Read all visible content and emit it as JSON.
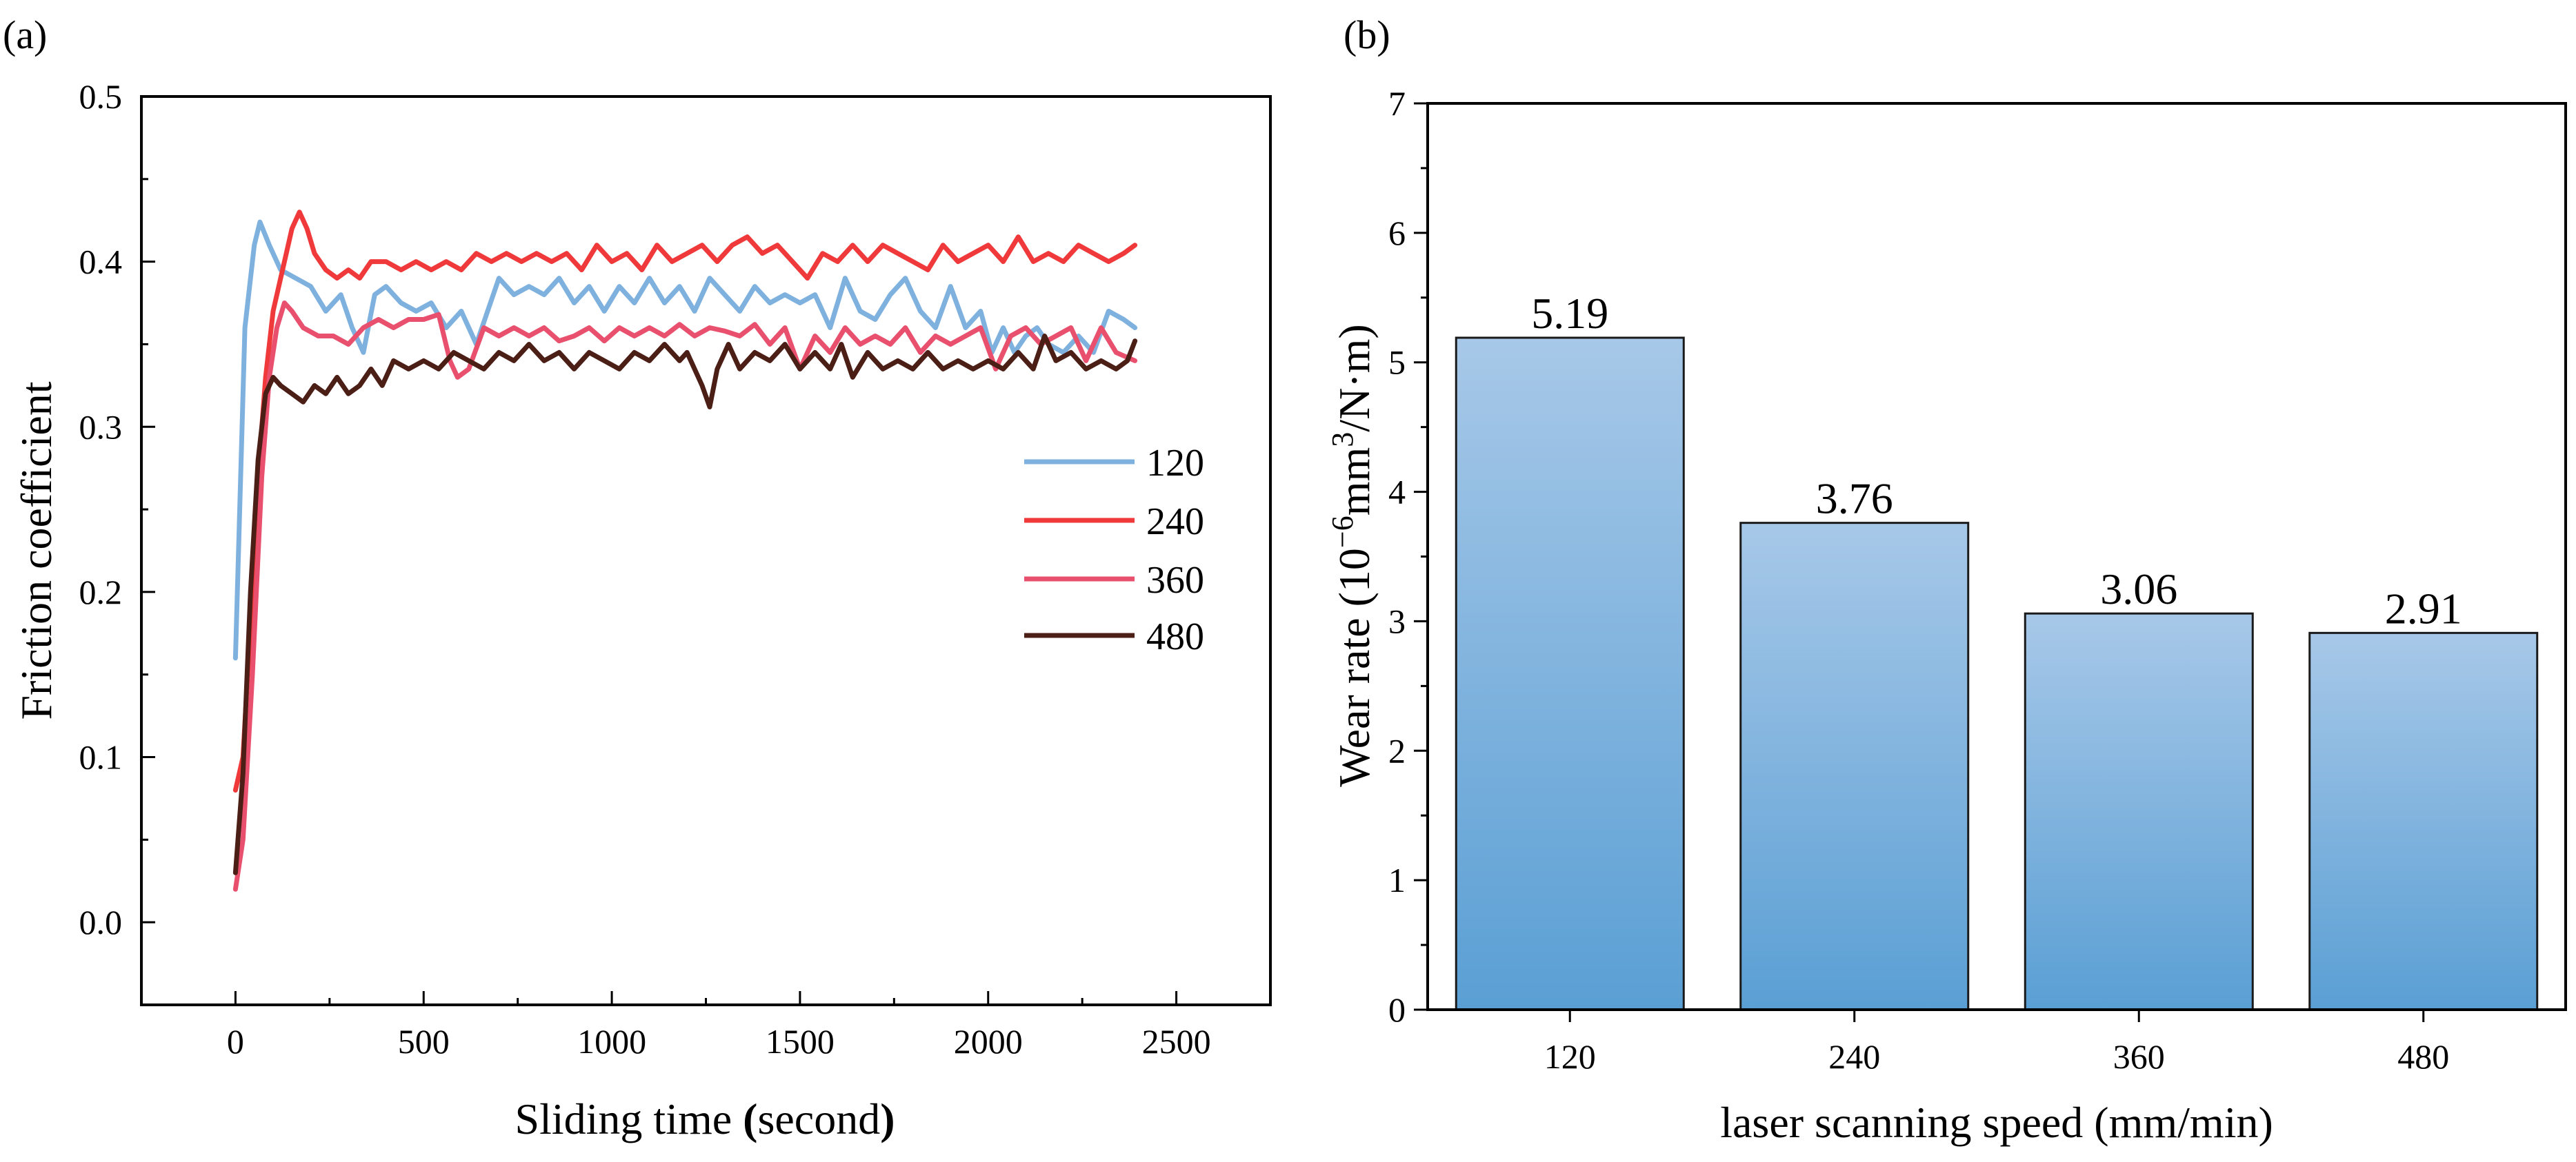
{
  "chart_data": [
    {
      "panel_label": "(a)",
      "type": "line",
      "title": "",
      "xlabel_parts": [
        "Sliding time ",
        "(",
        "second",
        ")"
      ],
      "ylabel": "Friction coefficient",
      "xlim": [
        -250,
        2750
      ],
      "ylim": [
        -0.05,
        0.5
      ],
      "x_ticks": [
        0,
        500,
        1000,
        1500,
        2000,
        2500
      ],
      "x_tick_labels": [
        "0",
        "500",
        "1000",
        "1500",
        "2000",
        "2500"
      ],
      "y_ticks": [
        0.0,
        0.1,
        0.2,
        0.3,
        0.4,
        0.5
      ],
      "y_tick_labels": [
        "0.0",
        "0.1",
        "0.2",
        "0.3",
        "0.4",
        "0.5"
      ],
      "grid": false,
      "legend_position": "right-middle",
      "series": [
        {
          "name": "120",
          "color": "#7fb1df",
          "x": [
            0,
            25,
            50,
            65,
            90,
            120,
            160,
            200,
            240,
            280,
            310,
            340,
            370,
            400,
            440,
            480,
            520,
            560,
            600,
            640,
            670,
            700,
            740,
            780,
            820,
            860,
            900,
            940,
            980,
            1020,
            1060,
            1100,
            1140,
            1180,
            1220,
            1260,
            1300,
            1340,
            1380,
            1420,
            1460,
            1500,
            1540,
            1580,
            1620,
            1660,
            1700,
            1740,
            1780,
            1820,
            1860,
            1900,
            1940,
            1980,
            2010,
            2040,
            2070,
            2100,
            2130,
            2160,
            2200,
            2240,
            2280,
            2320,
            2360,
            2390
          ],
          "y": [
            0.16,
            0.36,
            0.41,
            0.424,
            0.41,
            0.395,
            0.39,
            0.385,
            0.37,
            0.38,
            0.36,
            0.345,
            0.38,
            0.385,
            0.375,
            0.37,
            0.375,
            0.36,
            0.37,
            0.35,
            0.37,
            0.39,
            0.38,
            0.385,
            0.38,
            0.39,
            0.375,
            0.385,
            0.37,
            0.385,
            0.375,
            0.39,
            0.375,
            0.385,
            0.37,
            0.39,
            0.38,
            0.37,
            0.385,
            0.375,
            0.38,
            0.375,
            0.38,
            0.36,
            0.39,
            0.37,
            0.365,
            0.38,
            0.39,
            0.37,
            0.36,
            0.385,
            0.36,
            0.37,
            0.345,
            0.36,
            0.345,
            0.355,
            0.36,
            0.35,
            0.345,
            0.355,
            0.345,
            0.37,
            0.365,
            0.36
          ]
        },
        {
          "name": "240",
          "color": "#f0393a",
          "x": [
            0,
            20,
            40,
            60,
            80,
            100,
            130,
            150,
            170,
            190,
            210,
            240,
            270,
            300,
            330,
            360,
            400,
            440,
            480,
            520,
            560,
            600,
            640,
            680,
            720,
            760,
            800,
            840,
            880,
            920,
            960,
            1000,
            1040,
            1080,
            1120,
            1160,
            1200,
            1240,
            1280,
            1320,
            1360,
            1400,
            1440,
            1480,
            1520,
            1560,
            1600,
            1640,
            1680,
            1720,
            1760,
            1800,
            1840,
            1880,
            1920,
            1960,
            2000,
            2040,
            2080,
            2120,
            2160,
            2200,
            2240,
            2280,
            2320,
            2360,
            2390
          ],
          "y": [
            0.08,
            0.1,
            0.18,
            0.27,
            0.33,
            0.37,
            0.4,
            0.42,
            0.43,
            0.42,
            0.405,
            0.395,
            0.39,
            0.395,
            0.39,
            0.4,
            0.4,
            0.395,
            0.4,
            0.395,
            0.4,
            0.395,
            0.405,
            0.4,
            0.405,
            0.4,
            0.405,
            0.4,
            0.405,
            0.395,
            0.41,
            0.4,
            0.405,
            0.395,
            0.41,
            0.4,
            0.405,
            0.41,
            0.4,
            0.41,
            0.415,
            0.405,
            0.41,
            0.4,
            0.39,
            0.405,
            0.4,
            0.41,
            0.4,
            0.41,
            0.405,
            0.4,
            0.395,
            0.41,
            0.4,
            0.405,
            0.41,
            0.4,
            0.415,
            0.4,
            0.405,
            0.4,
            0.41,
            0.405,
            0.4,
            0.405,
            0.41
          ]
        },
        {
          "name": "360",
          "color": "#e8506e",
          "x": [
            0,
            20,
            45,
            70,
            90,
            110,
            130,
            150,
            180,
            220,
            260,
            300,
            340,
            380,
            420,
            460,
            500,
            540,
            570,
            590,
            620,
            660,
            700,
            740,
            780,
            820,
            860,
            900,
            940,
            980,
            1020,
            1060,
            1100,
            1140,
            1180,
            1220,
            1260,
            1300,
            1340,
            1380,
            1420,
            1460,
            1500,
            1540,
            1580,
            1620,
            1660,
            1700,
            1740,
            1780,
            1820,
            1860,
            1900,
            1940,
            1980,
            2020,
            2060,
            2100,
            2140,
            2180,
            2220,
            2260,
            2300,
            2340,
            2390
          ],
          "y": [
            0.02,
            0.05,
            0.15,
            0.27,
            0.33,
            0.36,
            0.375,
            0.37,
            0.36,
            0.355,
            0.355,
            0.35,
            0.36,
            0.365,
            0.36,
            0.365,
            0.365,
            0.368,
            0.34,
            0.33,
            0.335,
            0.36,
            0.355,
            0.36,
            0.355,
            0.36,
            0.352,
            0.355,
            0.36,
            0.352,
            0.36,
            0.355,
            0.36,
            0.355,
            0.362,
            0.355,
            0.36,
            0.358,
            0.355,
            0.362,
            0.35,
            0.36,
            0.335,
            0.355,
            0.345,
            0.36,
            0.35,
            0.355,
            0.35,
            0.36,
            0.345,
            0.355,
            0.35,
            0.355,
            0.36,
            0.335,
            0.355,
            0.36,
            0.35,
            0.355,
            0.36,
            0.34,
            0.36,
            0.345,
            0.34
          ]
        },
        {
          "name": "480",
          "color": "#4b1e16",
          "x": [
            0,
            20,
            40,
            60,
            80,
            100,
            120,
            150,
            180,
            210,
            240,
            270,
            300,
            330,
            360,
            390,
            420,
            460,
            500,
            540,
            580,
            620,
            660,
            700,
            740,
            780,
            820,
            860,
            900,
            940,
            980,
            1020,
            1060,
            1100,
            1140,
            1180,
            1200,
            1220,
            1240,
            1260,
            1280,
            1310,
            1340,
            1380,
            1420,
            1460,
            1500,
            1540,
            1580,
            1610,
            1640,
            1680,
            1720,
            1760,
            1800,
            1840,
            1880,
            1920,
            1960,
            2000,
            2040,
            2080,
            2120,
            2150,
            2180,
            2220,
            2260,
            2300,
            2340,
            2370,
            2390
          ],
          "y": [
            0.03,
            0.09,
            0.2,
            0.28,
            0.32,
            0.33,
            0.325,
            0.32,
            0.315,
            0.325,
            0.32,
            0.33,
            0.32,
            0.325,
            0.335,
            0.325,
            0.34,
            0.335,
            0.34,
            0.335,
            0.345,
            0.34,
            0.335,
            0.345,
            0.34,
            0.35,
            0.34,
            0.345,
            0.335,
            0.345,
            0.34,
            0.335,
            0.345,
            0.34,
            0.35,
            0.34,
            0.345,
            0.335,
            0.325,
            0.312,
            0.335,
            0.35,
            0.335,
            0.345,
            0.34,
            0.35,
            0.335,
            0.345,
            0.335,
            0.35,
            0.33,
            0.345,
            0.335,
            0.34,
            0.335,
            0.345,
            0.335,
            0.34,
            0.335,
            0.34,
            0.335,
            0.345,
            0.335,
            0.355,
            0.34,
            0.345,
            0.335,
            0.34,
            0.335,
            0.34,
            0.352
          ]
        }
      ]
    },
    {
      "panel_label": "(b)",
      "type": "bar",
      "title": "",
      "categories": [
        "120",
        "240",
        "360",
        "480"
      ],
      "values": [
        5.19,
        3.76,
        3.06,
        2.91
      ],
      "value_labels": [
        "5.19",
        "3.76",
        "3.06",
        "2.91"
      ],
      "xlabel": "laser scanning speed (mm/min)",
      "ylabel_parts": {
        "pre": "Wear rate (10",
        "exp1": "−6",
        "mid": "mm",
        "exp2": "3",
        "post": "/N·m)"
      },
      "ylim": [
        0,
        7
      ],
      "y_ticks": [
        0,
        1,
        2,
        3,
        4,
        5,
        6,
        7
      ],
      "y_tick_labels": [
        "0",
        "1",
        "2",
        "3",
        "4",
        "5",
        "6",
        "7"
      ],
      "grid": false,
      "bar_color_top": "#a7c8e8",
      "bar_color_bottom": "#5a9fd4",
      "bar_edge_color": "#1a1a1a"
    }
  ]
}
